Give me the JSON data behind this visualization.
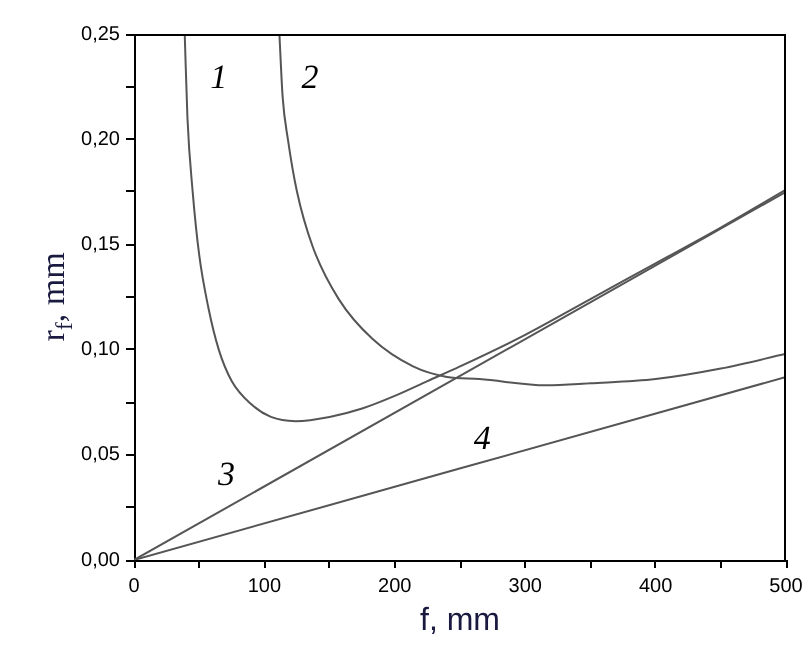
{
  "chart_data": {
    "type": "line",
    "xlabel": "f, mm",
    "ylabel": "r$_{f}$, mm",
    "xlim": [
      0,
      500
    ],
    "ylim": [
      0,
      0.25
    ],
    "xticks": [
      0,
      {
        "value": 50,
        "label": null
      },
      100,
      {
        "value": 150,
        "label": null
      },
      200,
      {
        "value": 250,
        "label": null
      },
      300,
      {
        "value": 350,
        "label": null
      },
      400,
      {
        "value": 450,
        "label": null
      },
      500
    ],
    "yticks": [
      {
        "value": 0,
        "label": "0,00"
      },
      {
        "value": 0.025,
        "label": null
      },
      {
        "value": 0.05,
        "label": "0,05"
      },
      {
        "value": 0.075,
        "label": null
      },
      {
        "value": 0.1,
        "label": "0,10"
      },
      {
        "value": 0.125,
        "label": null
      },
      {
        "value": 0.15,
        "label": "0,15"
      },
      {
        "value": 0.175,
        "label": null
      },
      {
        "value": 0.2,
        "label": "0,20"
      },
      {
        "value": 0.225,
        "label": null
      },
      {
        "value": 0.25,
        "label": "0,25"
      }
    ],
    "series": [
      {
        "color": "#555555",
        "x": [
          38.9,
          41,
          45,
          50,
          57,
          65,
          75,
          90,
          105,
          124,
          150,
          175,
          200,
          225,
          250,
          300,
          350,
          400,
          450,
          500
        ],
        "values": [
          0.25,
          0.21,
          0.175,
          0.145,
          0.12,
          0.1,
          0.085,
          0.074,
          0.068,
          0.066,
          0.068,
          0.072,
          0.078,
          0.085,
          0.092,
          0.107,
          0.124,
          0.141,
          0.158,
          0.176
        ]
      },
      {
        "color": "#555555",
        "x": [
          111.5,
          114,
          118,
          125,
          137,
          157,
          183,
          214,
          240,
          265,
          316,
          350,
          400,
          450,
          500
        ],
        "values": [
          0.25,
          0.22,
          0.2,
          0.175,
          0.149,
          0.124,
          0.105,
          0.092,
          0.087,
          0.086,
          0.083,
          0.084,
          0.086,
          0.091,
          0.098
        ]
      },
      {
        "color": "#555555",
        "x": [
          0,
          500
        ],
        "values": [
          0,
          0.175
        ]
      },
      {
        "color": "#555555",
        "x": [
          0,
          500
        ],
        "values": [
          0,
          0.087
        ]
      }
    ],
    "annotations": [
      "1",
      "2",
      "3",
      "4"
    ],
    "grid": false,
    "legend": false,
    "marker": "none",
    "line_style": "solid"
  }
}
